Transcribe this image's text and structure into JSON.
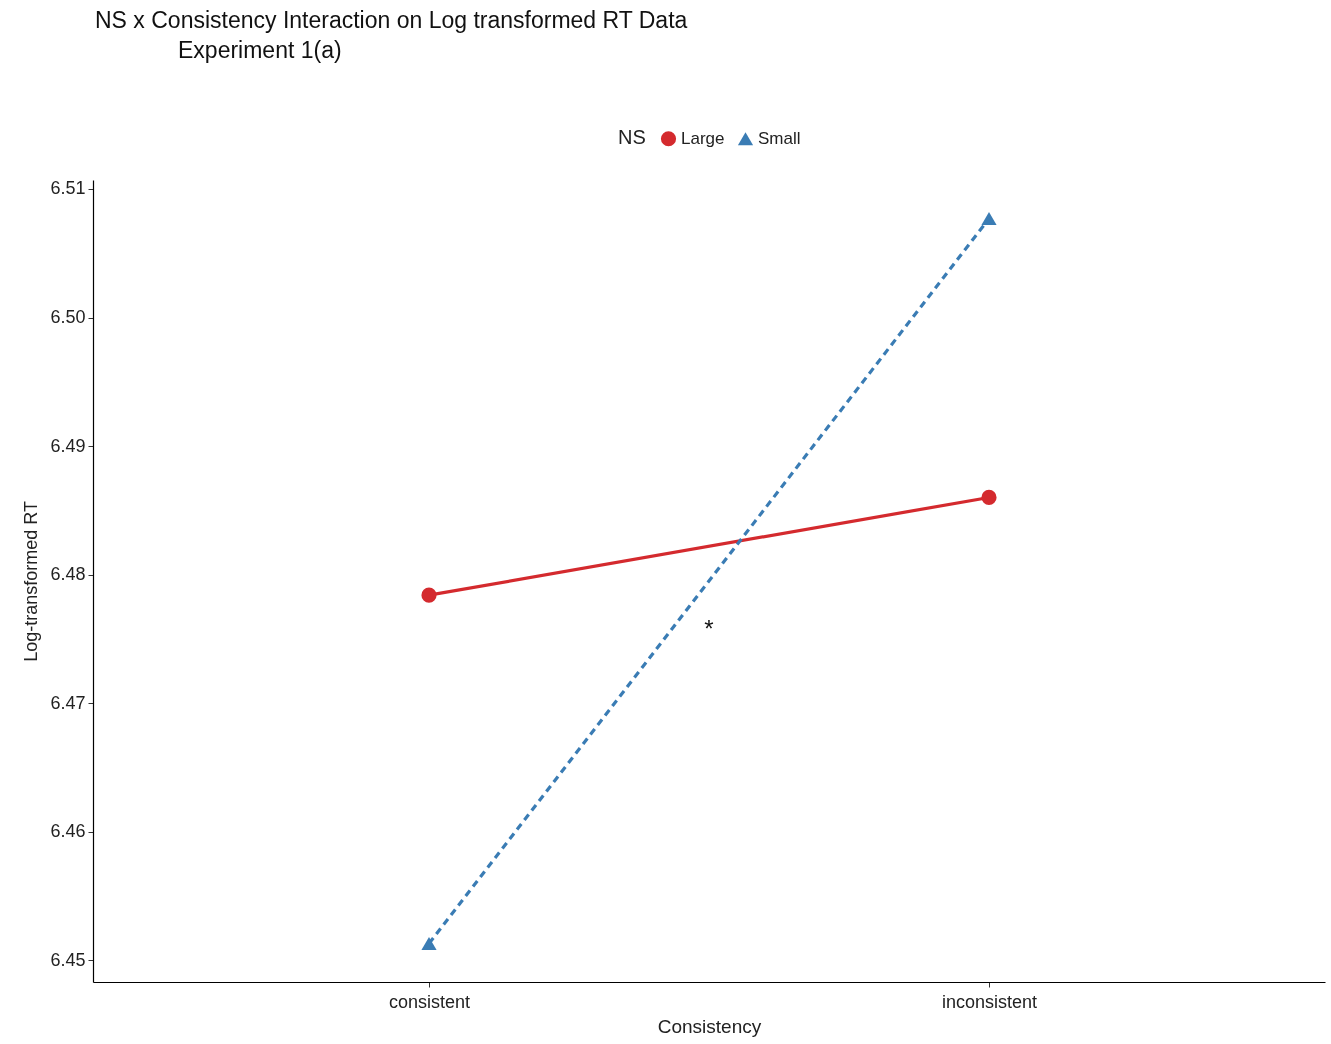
{
  "chart_data": {
    "type": "line",
    "title": "NS x Consistency Interaction on Log transformed RT Data",
    "subtitle": "Experiment 1(a)",
    "xlabel": "Consistency",
    "ylabel": "Log-transformed RT",
    "legend_title": "NS",
    "categories": [
      "consistent",
      "inconsistent"
    ],
    "series": [
      {
        "name": "Large",
        "color": "#d42a2e",
        "values": [
          6.4784,
          6.486
        ],
        "marker": "circle",
        "line_style": "solid"
      },
      {
        "name": "Small",
        "color": "#3a7cb4",
        "values": [
          6.4513,
          6.5077
        ],
        "marker": "triangle",
        "line_style": "dashed"
      }
    ],
    "ylim": [
      6.4483,
      6.5107
    ],
    "yticks": [
      6.45,
      6.46,
      6.47,
      6.48,
      6.49,
      {
        "value": 6.5,
        "label": "6.50"
      },
      6.51
    ],
    "annotations": [
      "*"
    ],
    "legend": "top"
  }
}
